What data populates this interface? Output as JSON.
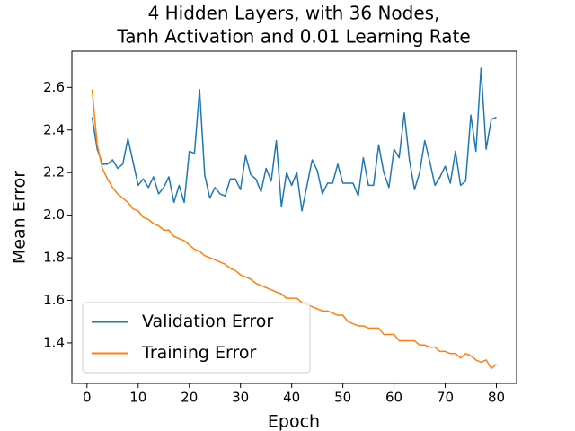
{
  "chart_data": {
    "type": "line",
    "title": [
      "4 Hidden Layers, with 36 Nodes,",
      "Tanh Activation and 0.01 Learning Rate"
    ],
    "x_label": "Epoch",
    "y_label": "Mean Error",
    "x": [
      1,
      2,
      3,
      4,
      5,
      6,
      7,
      8,
      9,
      10,
      11,
      12,
      13,
      14,
      15,
      16,
      17,
      18,
      19,
      20,
      21,
      22,
      23,
      24,
      25,
      26,
      27,
      28,
      29,
      30,
      31,
      32,
      33,
      34,
      35,
      36,
      37,
      38,
      39,
      40,
      41,
      42,
      43,
      44,
      45,
      46,
      47,
      48,
      49,
      50,
      51,
      52,
      53,
      54,
      55,
      56,
      57,
      58,
      59,
      60,
      61,
      62,
      63,
      64,
      65,
      66,
      67,
      68,
      69,
      70,
      71,
      72,
      73,
      74,
      75,
      76,
      77,
      78,
      79,
      80
    ],
    "series": [
      {
        "name": "Validation Error",
        "color": "#1f77b4",
        "values": [
          2.46,
          2.31,
          2.24,
          2.24,
          2.26,
          2.22,
          2.24,
          2.36,
          2.25,
          2.14,
          2.17,
          2.13,
          2.18,
          2.1,
          2.13,
          2.18,
          2.06,
          2.14,
          2.06,
          2.3,
          2.29,
          2.59,
          2.19,
          2.08,
          2.13,
          2.1,
          2.09,
          2.17,
          2.17,
          2.12,
          2.28,
          2.19,
          2.17,
          2.11,
          2.22,
          2.16,
          2.35,
          2.04,
          2.2,
          2.14,
          2.2,
          2.02,
          2.14,
          2.26,
          2.21,
          2.1,
          2.15,
          2.15,
          2.24,
          2.15,
          2.15,
          2.15,
          2.09,
          2.27,
          2.14,
          2.14,
          2.33,
          2.2,
          2.13,
          2.31,
          2.27,
          2.48,
          2.26,
          2.12,
          2.2,
          2.35,
          2.25,
          2.14,
          2.18,
          2.23,
          2.15,
          2.3,
          2.14,
          2.16,
          2.47,
          2.3,
          2.69,
          2.31,
          2.45,
          2.46
        ]
      },
      {
        "name": "Training Error",
        "color": "#ff7f0e",
        "values": [
          2.59,
          2.33,
          2.22,
          2.17,
          2.13,
          2.1,
          2.08,
          2.06,
          2.03,
          2.02,
          1.99,
          1.98,
          1.96,
          1.95,
          1.93,
          1.93,
          1.9,
          1.89,
          1.88,
          1.86,
          1.84,
          1.83,
          1.81,
          1.8,
          1.79,
          1.78,
          1.77,
          1.75,
          1.74,
          1.72,
          1.71,
          1.7,
          1.68,
          1.67,
          1.66,
          1.65,
          1.64,
          1.63,
          1.61,
          1.61,
          1.61,
          1.59,
          1.58,
          1.57,
          1.56,
          1.55,
          1.55,
          1.54,
          1.53,
          1.53,
          1.5,
          1.49,
          1.48,
          1.48,
          1.47,
          1.47,
          1.47,
          1.44,
          1.44,
          1.44,
          1.41,
          1.41,
          1.41,
          1.41,
          1.39,
          1.39,
          1.38,
          1.38,
          1.36,
          1.36,
          1.35,
          1.35,
          1.33,
          1.35,
          1.34,
          1.32,
          1.31,
          1.32,
          1.28,
          1.3
        ]
      }
    ],
    "xlim": [
      -2.95,
      83.95
    ],
    "ylim": [
      1.21,
      2.77
    ],
    "xticks": [
      0,
      10,
      20,
      30,
      40,
      50,
      60,
      70,
      80
    ],
    "yticks": [
      1.4,
      1.6,
      1.8,
      {
        "value": 2,
        "label": "2.0"
      },
      2.2,
      2.4,
      2.6
    ],
    "grid": false,
    "legend": "lower left"
  }
}
